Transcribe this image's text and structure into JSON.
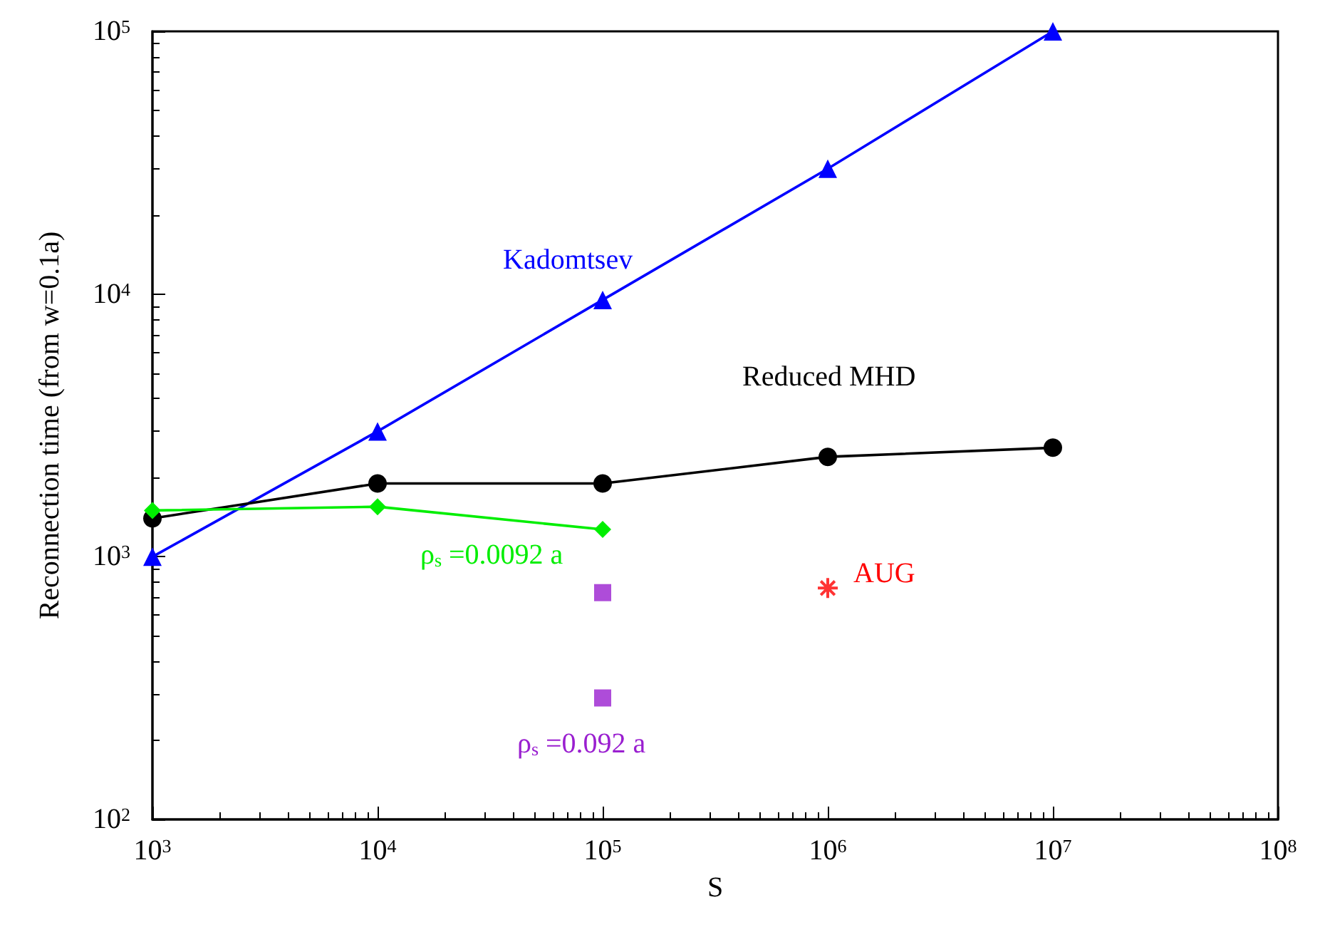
{
  "chart_data": {
    "type": "line",
    "xlabel": "S",
    "ylabel": "Reconnection time (from w=0.1a)",
    "log": "xy",
    "grid": false,
    "legend": false,
    "xlim": [
      1000,
      100000000
    ],
    "xticks": [
      {
        "value": 1000,
        "label": "10$^{3}$"
      },
      {
        "value": 10000,
        "label": "10$^{4}$"
      },
      {
        "value": 100000,
        "label": "10$^{5}$"
      },
      {
        "value": 1000000,
        "label": "10$^{6}$"
      },
      {
        "value": 10000000,
        "label": "10$^{7}$"
      },
      {
        "value": 100000000,
        "label": "10$^{8}$"
      }
    ],
    "ylim": [
      100,
      100000
    ],
    "yticks": [
      {
        "value": 100,
        "label": "10$^{2}$"
      },
      {
        "value": 1000,
        "label": "10$^{3}$"
      },
      {
        "value": 10000,
        "label": "10$^{4}$"
      },
      {
        "value": 100000,
        "label": "10$^{5}$"
      }
    ],
    "series": [
      {
        "name": "Kadomtsev",
        "color": "#0000ff",
        "marker": "triangle",
        "x": [
          1000,
          10000,
          100000,
          1000000,
          10000000
        ],
        "values": [
          1000,
          3000,
          9500,
          30000,
          100000
        ]
      },
      {
        "name": "Reduced MHD",
        "color": "#000000",
        "marker": "circle",
        "x": [
          1000,
          10000,
          100000,
          1000000,
          10000000
        ],
        "values": [
          1400,
          1900,
          1900,
          2400,
          2600
        ]
      },
      {
        "name": "ρ$_{s}$ =0.0092 a",
        "color": "#00ee00",
        "marker": "diamond",
        "x": [
          1000,
          10000,
          100000
        ],
        "values": [
          1500,
          1550,
          1270
        ]
      },
      {
        "type": "scatter",
        "color": "#9a1fd0",
        "marker": "square",
        "x": [
          100000
        ],
        "values": [
          730
        ]
      },
      {
        "type": "scatter",
        "name": "ρ$_{s}$ =0.092 a",
        "color": "#9a1fd0",
        "marker": "square",
        "x": [
          100000
        ],
        "values": [
          290
        ]
      },
      {
        "type": "scatter",
        "name": "AUG",
        "color": "#ff0000",
        "marker": "cross",
        "x": [
          1000000
        ],
        "values": [
          760
        ]
      }
    ]
  }
}
